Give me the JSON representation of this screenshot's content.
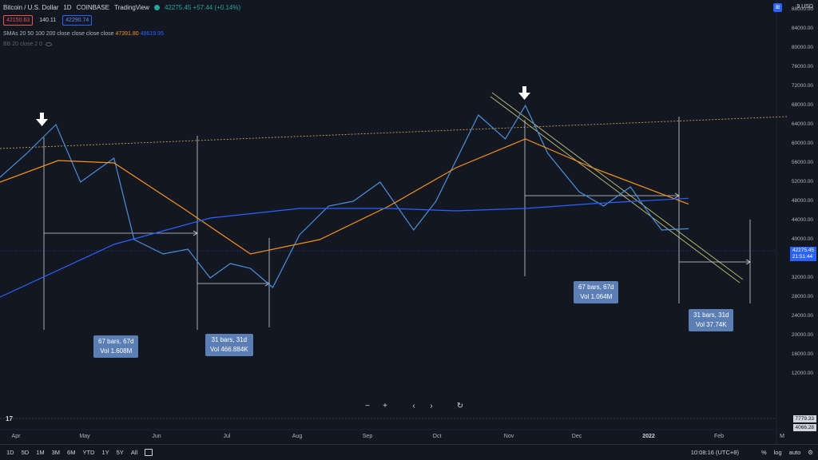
{
  "header": {
    "symbol": "Bitcoin / U.S. Dollar",
    "interval": "1D",
    "exchange": "COINBASE",
    "source": "TradingView",
    "quote": "42275.45 +57.44 (+0.14%)"
  },
  "order": {
    "sell": "42150.63",
    "spread": "140.11",
    "buy": "42290.74"
  },
  "indicators": {
    "sma_label": "SMAs 20 50 100 200 close close close close",
    "sma_v1": "47391.80",
    "sma_v2": "48619.95",
    "bb_label": "BB 20 close 2 0"
  },
  "currency": "9 USD",
  "price_axis": [
    "88000.00",
    "84000.00",
    "80000.00",
    "76000.00",
    "72000.00",
    "68000.00",
    "64000.00",
    "60000.00",
    "56000.00",
    "52000.00",
    "48000.00",
    "44000.00",
    "40000.00",
    "36000.00",
    "32000.00",
    "28000.00",
    "24000.00",
    "20000.00",
    "16000.00",
    "12000.00"
  ],
  "price_label": "42275.45",
  "price_countdown": "21:51:44",
  "lower_values": [
    "7779.33",
    "4066.28"
  ],
  "time_axis": [
    {
      "label": "Apr",
      "bold": false
    },
    {
      "label": "May",
      "bold": false
    },
    {
      "label": "Jun",
      "bold": false
    },
    {
      "label": "Jul",
      "bold": false
    },
    {
      "label": "Aug",
      "bold": false
    },
    {
      "label": "Sep",
      "bold": false
    },
    {
      "label": "Oct",
      "bold": false
    },
    {
      "label": "Nov",
      "bold": false
    },
    {
      "label": "Dec",
      "bold": false
    },
    {
      "label": "2022",
      "bold": true
    },
    {
      "label": "Feb",
      "bold": false
    },
    {
      "label": "M",
      "bold": false
    }
  ],
  "annotations": [
    {
      "line1": "67 bars, 67d",
      "line2": "Vol 1.608M"
    },
    {
      "line1": "31 bars, 31d",
      "line2": "Vol 466.884K"
    },
    {
      "line1": "67 bars, 67d",
      "line2": "Vol 1.064M"
    },
    {
      "line1": "31 bars, 31d",
      "line2": "Vol 37.74K"
    }
  ],
  "nav": {
    "zoom_out": "−",
    "zoom_in": "+",
    "back": "‹",
    "forward": "›",
    "reset": "↻"
  },
  "bottom_bar": {
    "timeframes": [
      "1D",
      "5D",
      "1M",
      "3M",
      "6M",
      "YTD",
      "1Y",
      "5Y",
      "All"
    ],
    "clock": "10:08:16 (UTC+8)",
    "percent": "%",
    "log": "log",
    "auto": "auto"
  },
  "colors": {
    "background": "#131722",
    "price_line": "#4a90d9",
    "sma_orange": "#f7931a",
    "sma_blue": "#2962ff",
    "trendline": "#b5b36a",
    "resistance": "#c8a24a"
  },
  "chart_data": {
    "type": "line",
    "series": [
      {
        "name": "Bitcoin / U.S. Dollar",
        "x": [
          "2021-03-20",
          "2021-04-01",
          "2021-04-14",
          "2021-04-25",
          "2021-05-10",
          "2021-05-19",
          "2021-06-01",
          "2021-06-12",
          "2021-06-22",
          "2021-07-01",
          "2021-07-10",
          "2021-07-20",
          "2021-08-01",
          "2021-08-14",
          "2021-08-25",
          "2021-09-06",
          "2021-09-21",
          "2021-10-01",
          "2021-10-20",
          "2021-11-01",
          "2021-11-10",
          "2021-11-20",
          "2021-12-04",
          "2021-12-15",
          "2021-12-27",
          "2022-01-05",
          "2022-01-10",
          "2022-01-22"
        ],
        "values": [
          53000,
          58000,
          64000,
          52000,
          57000,
          40000,
          37000,
          38000,
          32000,
          35000,
          34000,
          30000,
          41000,
          47000,
          48000,
          52000,
          42000,
          48000,
          66000,
          61000,
          68000,
          58000,
          50000,
          47000,
          51000,
          45000,
          42000,
          42275
        ]
      },
      {
        "name": "SMA",
        "x": [
          "2021-03-20",
          "2021-04-15",
          "2021-05-10",
          "2021-06-10",
          "2021-07-10",
          "2021-08-10",
          "2021-09-10",
          "2021-10-10",
          "2021-11-10",
          "2021-12-10",
          "2022-01-22"
        ],
        "values": [
          52000,
          56500,
          56000,
          46500,
          37000,
          40000,
          47000,
          55000,
          61000,
          55000,
          47391.8
        ]
      },
      {
        "name": "SMA 200",
        "x": [
          "2021-03-20",
          "2021-05-10",
          "2021-06-22",
          "2021-08-01",
          "2021-09-10",
          "2021-10-10",
          "2021-11-10",
          "2021-12-10",
          "2022-01-22"
        ],
        "values": [
          28000,
          39000,
          44500,
          46500,
          46500,
          46000,
          46500,
          47500,
          48619.95
        ]
      }
    ],
    "ylim": [
      12000,
      90000
    ]
  }
}
